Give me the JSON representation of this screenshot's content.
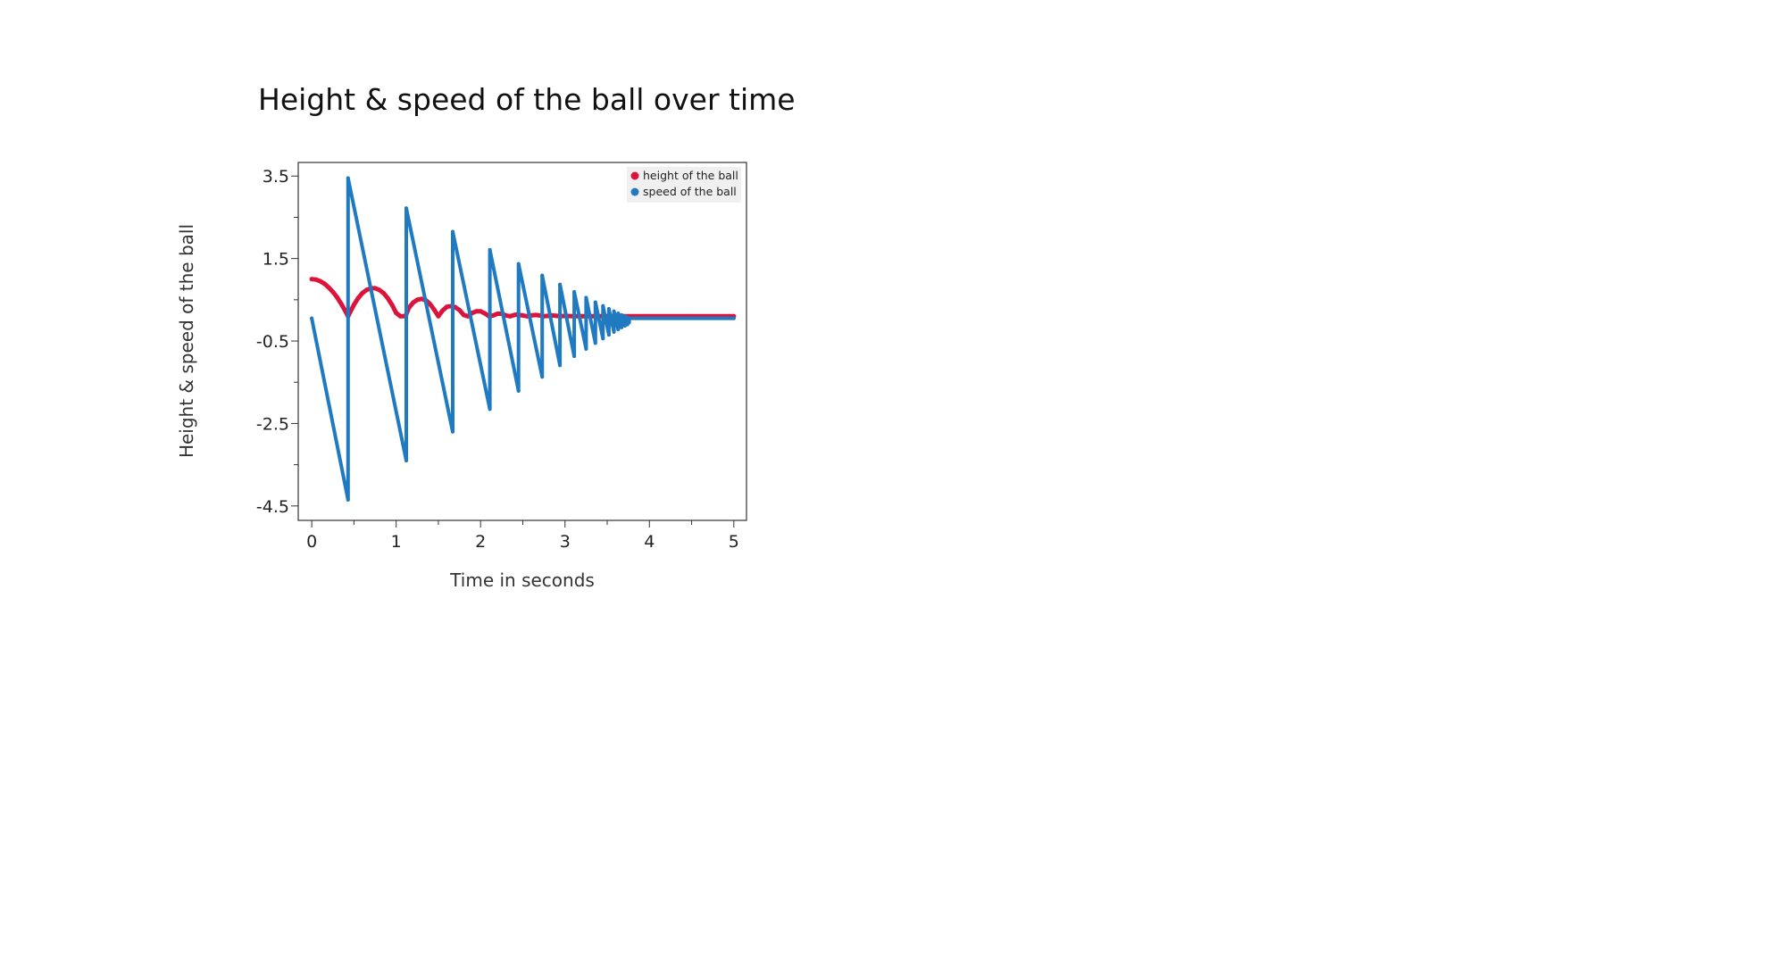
{
  "chart_data": {
    "type": "line",
    "title": "Height & speed of the ball over time",
    "xlabel": "Time in seconds",
    "ylabel": "Height & speed of the ball",
    "xlim": [
      -0.16,
      5.15
    ],
    "ylim": [
      -4.85,
      3.83
    ],
    "x_ticks": [
      0,
      1,
      2,
      3,
      4,
      5
    ],
    "x_minor_ticks": [
      0.5,
      1.5,
      2.5,
      3.5,
      4.5
    ],
    "y_ticks": [
      3.5,
      1.5,
      -0.5,
      -2.5,
      -4.5
    ],
    "y_minor_ticks": [
      2.5,
      0.5,
      -1.5,
      -3.5
    ],
    "grid": false,
    "legend_position": "top-right",
    "series": [
      {
        "name": "height of the ball",
        "color": "#dc143c",
        "x": [
          0,
          0.05,
          0.1,
          0.15,
          0.2,
          0.25,
          0.3,
          0.35,
          0.4,
          0.43,
          0.5,
          0.55,
          0.6,
          0.65,
          0.7,
          0.75,
          0.8,
          0.85,
          0.9,
          0.95,
          1.0,
          1.05,
          1.11,
          1.15,
          1.2,
          1.25,
          1.3,
          1.35,
          1.4,
          1.45,
          1.5,
          1.55,
          1.6,
          1.66,
          1.7,
          1.75,
          1.8,
          1.85,
          1.9,
          1.95,
          2.0,
          2.05,
          2.1,
          2.15,
          2.2,
          2.25,
          2.3,
          2.35,
          2.4,
          2.43,
          2.5,
          2.55,
          2.6,
          2.65,
          2.7,
          2.75,
          2.8,
          2.85,
          2.9,
          2.95,
          3.0,
          3.1,
          3.2,
          3.3,
          3.4,
          3.5,
          3.6,
          3.7,
          3.8,
          4.0,
          4.5,
          5.0
        ],
        "y": [
          1.0,
          0.99,
          0.95,
          0.89,
          0.8,
          0.69,
          0.56,
          0.4,
          0.22,
          0.1,
          0.38,
          0.54,
          0.66,
          0.74,
          0.78,
          0.78,
          0.74,
          0.66,
          0.54,
          0.38,
          0.18,
          0.1,
          0.1,
          0.3,
          0.43,
          0.5,
          0.52,
          0.49,
          0.4,
          0.26,
          0.1,
          0.24,
          0.33,
          0.35,
          0.32,
          0.25,
          0.13,
          0.1,
          0.18,
          0.22,
          0.22,
          0.17,
          0.1,
          0.12,
          0.16,
          0.16,
          0.12,
          0.1,
          0.13,
          0.14,
          0.12,
          0.1,
          0.12,
          0.13,
          0.12,
          0.1,
          0.11,
          0.12,
          0.11,
          0.1,
          0.11,
          0.1,
          0.1,
          0.1,
          0.1,
          0.1,
          0.1,
          0.1,
          0.1,
          0.1,
          0.1,
          0.1
        ]
      },
      {
        "name": "speed of the ball",
        "color": "#1f7ac2",
        "x": [
          0,
          0.43,
          0.43,
          1.12,
          1.12,
          1.67,
          1.67,
          2.11,
          2.11,
          2.45,
          2.45,
          2.73,
          2.73,
          2.94,
          2.94,
          3.11,
          3.11,
          3.25,
          3.25,
          3.36,
          3.36,
          3.45,
          3.45,
          3.52,
          3.52,
          3.58,
          3.58,
          3.63,
          3.63,
          3.67,
          3.67,
          3.71,
          3.71,
          3.74,
          3.74,
          3.76,
          3.76,
          5.0
        ],
        "y": [
          0.05,
          -4.35,
          3.45,
          -3.4,
          2.72,
          -2.7,
          2.15,
          -2.15,
          1.71,
          -1.71,
          1.37,
          -1.37,
          1.09,
          -1.09,
          0.87,
          -0.87,
          0.69,
          -0.69,
          0.55,
          -0.55,
          0.44,
          -0.44,
          0.35,
          -0.35,
          0.28,
          -0.28,
          0.22,
          -0.22,
          0.17,
          -0.17,
          0.13,
          -0.13,
          0.1,
          -0.1,
          0.07,
          -0.05,
          0.05,
          0.05
        ]
      }
    ]
  }
}
